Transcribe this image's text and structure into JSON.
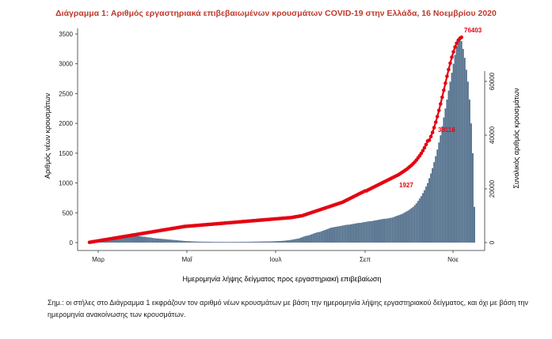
{
  "chart_data": {
    "type": "bar",
    "title": "Διάγραμμα 1: Αριθμός εργαστηριακά επιβεβαιωμένων κρουσμάτων COVID-19 στην Ελλάδα, 16 Νοεμβρίου 2020",
    "xlabel": "Ημερομηνία λήψης δείγματος προς εργαστηριακή επιβεβαίωση",
    "ylabel": "Αριθμός νέων κρουσμάτων",
    "y2label": "Συνολικός αριθμός κρουσμάτων",
    "x_ticks": [
      "Μαρ",
      "Μαΐ",
      "Ιουλ",
      "Σεπ",
      "Νοε"
    ],
    "y_ticks": [
      0,
      500,
      1000,
      1500,
      2000,
      2500,
      3000,
      3500
    ],
    "y2_ticks": [
      0,
      20000,
      40000,
      60000
    ],
    "ylim": [
      0,
      3600
    ],
    "y2lim": [
      0,
      75000
    ],
    "annotations": [
      "1927",
      "38116",
      "76403"
    ],
    "bar_color": "#4f6d8a",
    "line_color": "#e30613",
    "series": [
      {
        "kind": "bar",
        "values": [
          2,
          3,
          5,
          6,
          7,
          8,
          10,
          12,
          15,
          20,
          25,
          30,
          35,
          40,
          45,
          50,
          55,
          60,
          70,
          75,
          80,
          90,
          95,
          100,
          110,
          115,
          120,
          118,
          116,
          114,
          110,
          108,
          105,
          100,
          98,
          95,
          90,
          88,
          85,
          80,
          75,
          72,
          70,
          68,
          65,
          62,
          60,
          58,
          55,
          52,
          50,
          48,
          45,
          42,
          40,
          38,
          35,
          33,
          30,
          28,
          26,
          25,
          24,
          22,
          20,
          20,
          18,
          18,
          16,
          16,
          15,
          15,
          14,
          14,
          14,
          13,
          13,
          13,
          12,
          12,
          12,
          12,
          12,
          12,
          11,
          11,
          11,
          11,
          11,
          11,
          12,
          12,
          12,
          12,
          13,
          13,
          13,
          13,
          14,
          14,
          14,
          15,
          15,
          16,
          16,
          17,
          17,
          18,
          18,
          19,
          19,
          20,
          20,
          21,
          22,
          23,
          24,
          25,
          26,
          28,
          30,
          32,
          35,
          38,
          40,
          45,
          50,
          55,
          60,
          65,
          70,
          80,
          90,
          100,
          110,
          115,
          120,
          130,
          140,
          150,
          160,
          170,
          175,
          180,
          190,
          200,
          210,
          220,
          230,
          240,
          250,
          255,
          260,
          265,
          270,
          275,
          280,
          285,
          290,
          295,
          300,
          300,
          305,
          310,
          315,
          320,
          325,
          330,
          330,
          335,
          340,
          345,
          350,
          355,
          360,
          360,
          365,
          370,
          375,
          380,
          385,
          390,
          395,
          400,
          400,
          405,
          410,
          415,
          420,
          430,
          440,
          450,
          460,
          470,
          480,
          495,
          510,
          525,
          540,
          560,
          580,
          600,
          630,
          660,
          700,
          740,
          780,
          830,
          880,
          940,
          1000,
          1080,
          1160,
          1250,
          1350,
          1450,
          1560,
          1680,
          1800,
          1950,
          2100,
          2250,
          2400,
          2550,
          2700,
          2850,
          3000,
          3150,
          3300,
          3400,
          3460,
          3380,
          3250,
          3100,
          2900,
          2700,
          2400,
          2000,
          1500,
          600
        ]
      },
      {
        "kind": "line",
        "values": [
          100,
          200,
          300,
          400,
          500,
          600,
          700,
          800,
          900,
          1000,
          1100,
          1200,
          1300,
          1400,
          1500,
          1600,
          1700,
          1800,
          1900,
          2000,
          2100,
          2200,
          2300,
          2400,
          2500,
          2600,
          2700,
          2800,
          2900,
          3000,
          3100,
          3200,
          3300,
          3400,
          3500,
          3600,
          3700,
          3800,
          3900,
          4000,
          4100,
          4200,
          4300,
          4400,
          4500,
          4600,
          4700,
          4800,
          4900,
          5000,
          5100,
          5200,
          5300,
          5400,
          5500,
          5600,
          5700,
          5800,
          5900,
          6000,
          6050,
          6100,
          6150,
          6200,
          6250,
          6300,
          6350,
          6400,
          6450,
          6500,
          6550,
          6600,
          6650,
          6700,
          6750,
          6800,
          6850,
          6900,
          6950,
          7000,
          7050,
          7100,
          7150,
          7200,
          7250,
          7300,
          7350,
          7400,
          7450,
          7500,
          7550,
          7600,
          7650,
          7700,
          7750,
          7800,
          7850,
          7900,
          7950,
          8000,
          8050,
          8100,
          8150,
          8200,
          8250,
          8300,
          8350,
          8400,
          8450,
          8500,
          8550,
          8600,
          8650,
          8700,
          8750,
          8800,
          8850,
          8900,
          8950,
          9000,
          9050,
          9100,
          9150,
          9200,
          9250,
          9300,
          9400,
          9500,
          9600,
          9700,
          9800,
          9900,
          10000,
          10200,
          10400,
          10600,
          10800,
          11000,
          11200,
          11400,
          11600,
          11800,
          12000,
          12200,
          12400,
          12600,
          12800,
          13000,
          13200,
          13400,
          13600,
          13800,
          14000,
          14200,
          14400,
          14600,
          14800,
          15000,
          15300,
          15600,
          15900,
          16200,
          16500,
          16800,
          17100,
          17400,
          17700,
          18000,
          18300,
          18600,
          18900,
          19200,
          19270,
          19600,
          19900,
          20200,
          20500,
          20800,
          21100,
          21400,
          21700,
          22000,
          22300,
          22600,
          22900,
          23200,
          23500,
          23800,
          24100,
          24400,
          24700,
          25000,
          25300,
          25700,
          26100,
          26500,
          26900,
          27300,
          27800,
          28300,
          28800,
          29400,
          30000,
          30700,
          31500,
          32300,
          33200,
          34200,
          35300,
          36500,
          37800,
          38116,
          39500,
          41000,
          42800,
          44800,
          46900,
          49200,
          51600,
          54100,
          56700,
          59300,
          61900,
          64400,
          66800,
          69000,
          71000,
          72800,
          74200,
          75300,
          76000,
          76403
        ]
      }
    ]
  },
  "note": "Σημ.: οι στήλες στο Διάγραμμα 1 εκφράζουν τον αριθμό νέων κρουσμάτων με βάση την ημερομηνία λήψης εργαστηριακού δείγματος, και όχι με βάση την ημερομηνία ανακοίνωσης των κρουσμάτων."
}
